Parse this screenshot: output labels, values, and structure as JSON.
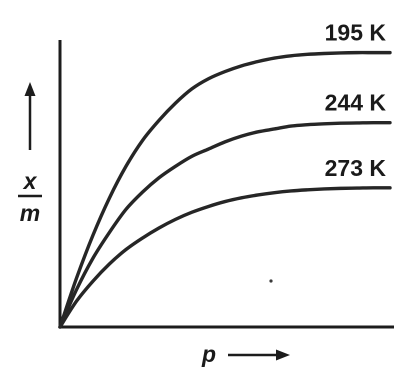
{
  "chart_data": {
    "type": "line",
    "title": "",
    "xlabel": "p",
    "ylabel_numerator": "x",
    "ylabel_denominator": "m",
    "xlim": [
      0,
      1
    ],
    "ylim": [
      0,
      1
    ],
    "grid": false,
    "legend": "none",
    "x": [
      0,
      0.05,
      0.1,
      0.15,
      0.2,
      0.25,
      0.3,
      0.35,
      0.4,
      0.45,
      0.5,
      0.55,
      0.6,
      0.65,
      0.7,
      0.75,
      0.8,
      0.85,
      0.9,
      0.95,
      1.0
    ],
    "series": [
      {
        "name": "195 K",
        "values": [
          0,
          0.17,
          0.32,
          0.45,
          0.56,
          0.65,
          0.72,
          0.78,
          0.83,
          0.865,
          0.89,
          0.91,
          0.925,
          0.937,
          0.945,
          0.95,
          0.953,
          0.955,
          0.956,
          0.956,
          0.956
        ]
      },
      {
        "name": "244 K",
        "values": [
          0,
          0.13,
          0.24,
          0.33,
          0.41,
          0.47,
          0.52,
          0.56,
          0.595,
          0.62,
          0.645,
          0.665,
          0.68,
          0.69,
          0.7,
          0.705,
          0.708,
          0.71,
          0.711,
          0.712,
          0.712
        ]
      },
      {
        "name": "273 K",
        "values": [
          0,
          0.09,
          0.16,
          0.22,
          0.27,
          0.31,
          0.345,
          0.375,
          0.4,
          0.42,
          0.437,
          0.45,
          0.46,
          0.468,
          0.474,
          0.478,
          0.481,
          0.483,
          0.484,
          0.485,
          0.485
        ]
      }
    ],
    "colors": {
      "axis": "#1c1c1c",
      "curve": "#262626",
      "text": "#1a1a1a",
      "background": "#ffffff"
    }
  }
}
